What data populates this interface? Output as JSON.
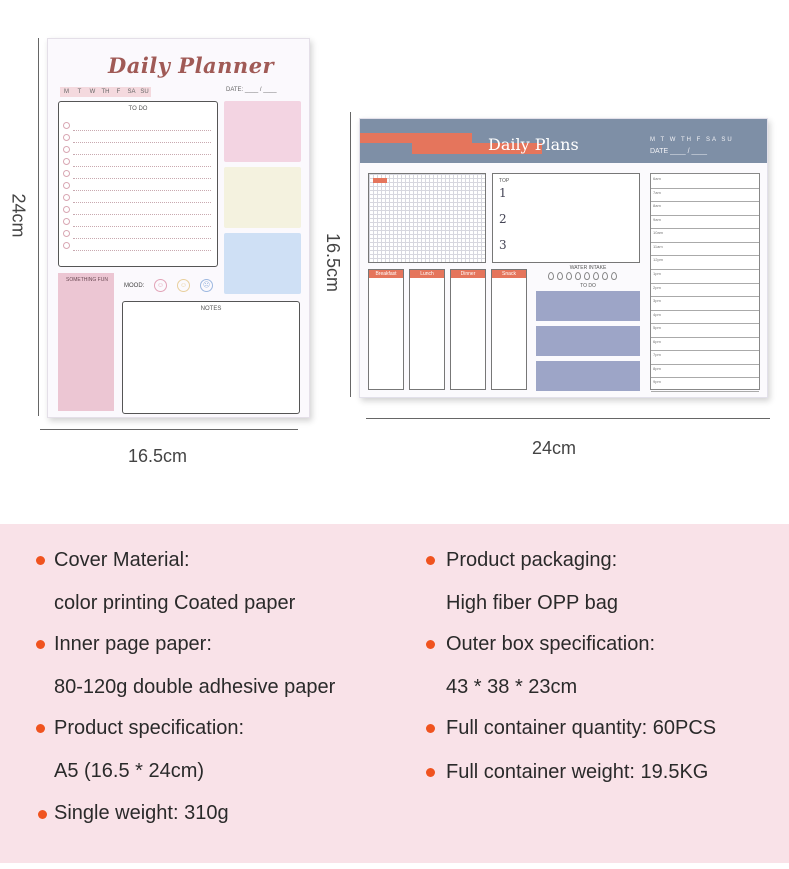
{
  "dimensions": {
    "left_height": "24cm",
    "left_width": "16.5cm",
    "right_height": "16.5cm",
    "right_width": "24cm"
  },
  "planner_left": {
    "title": "Daily Planner",
    "days": [
      "M",
      "T",
      "W",
      "TH",
      "F",
      "SA",
      "SU"
    ],
    "date_label": "DATE:  ____ / ____",
    "todo_label": "TO DO",
    "fun_label": "SOMETHING FUN",
    "mood_label": "MOOD:",
    "notes_label": "NOTES",
    "swatch_colors": [
      "#f3d4e2",
      "#f4f2df",
      "#cfe0f5"
    ]
  },
  "planner_right": {
    "title": "Daily Plans",
    "days": "M  T  W  TH  F  SA  SU",
    "date_label": "DATE ____ / ____",
    "top_label": "TOP",
    "top_numbers": [
      "1",
      "2",
      "3"
    ],
    "meals": [
      "Breakfast",
      "Lunch",
      "Dinner",
      "Snack"
    ],
    "water_label": "WATER INTAKE",
    "todo_label": "TO DO",
    "times": [
      "6am",
      "7am",
      "8am",
      "9am",
      "10am",
      "11am",
      "12pm",
      "1pm",
      "2pm",
      "3pm",
      "4pm",
      "5pm",
      "6pm",
      "7pm",
      "8pm",
      "9pm"
    ]
  },
  "specs": {
    "left": [
      {
        "label": "Cover Material:",
        "value": "color printing Coated paper"
      },
      {
        "label": "Inner page paper:",
        "value": "80-120g double adhesive paper"
      },
      {
        "label": "Product specification:",
        "value": "A5 (16.5 * 24cm)"
      },
      {
        "label": "Single weight: 310g",
        "value": ""
      }
    ],
    "right": [
      {
        "label": "Product packaging:",
        "value": "High fiber OPP bag"
      },
      {
        "label": "Outer box specification:",
        "value": "43 * 38 * 23cm"
      },
      {
        "label": "Full container quantity: 60PCS",
        "value": ""
      },
      {
        "label": "Full container weight: 19.5KG",
        "value": ""
      }
    ]
  },
  "colors": {
    "accent": "#f0531f",
    "panel_bg": "#f9e2e8",
    "header_blue": "#7e8fa6",
    "coral": "#e5755c"
  }
}
